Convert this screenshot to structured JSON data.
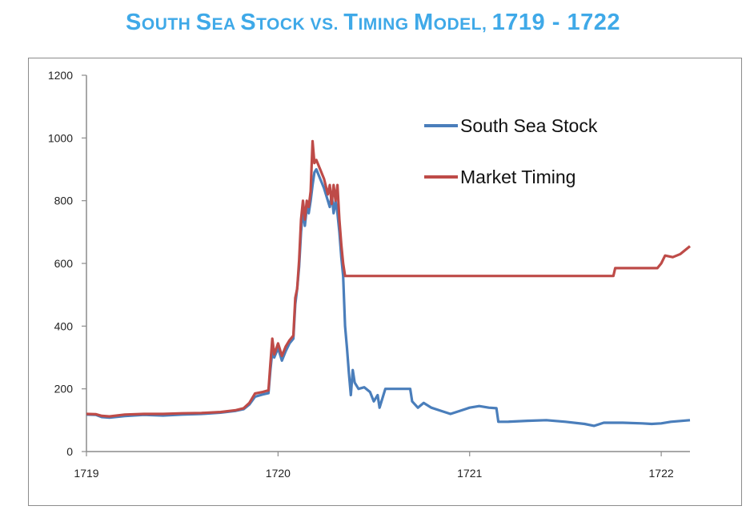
{
  "title_parts": [
    {
      "t": "S",
      "big": true
    },
    {
      "t": "outh ",
      "big": false
    },
    {
      "t": "S",
      "big": true
    },
    {
      "t": "ea ",
      "big": false
    },
    {
      "t": "S",
      "big": true
    },
    {
      "t": "tock vs. ",
      "big": false
    },
    {
      "t": "T",
      "big": true
    },
    {
      "t": "iming ",
      "big": false
    },
    {
      "t": "M",
      "big": true
    },
    {
      "t": "odel, ",
      "big": false
    },
    {
      "t": "1719 - 1722",
      "big": true
    }
  ],
  "colors": {
    "title": "#3FA9E8",
    "south_sea": "#4A7EBB",
    "market_timing": "#BE4B48"
  },
  "chart_data": {
    "type": "line",
    "title": "South Sea Stock vs. Timing Model, 1719 - 1722",
    "xlabel": "",
    "ylabel": "",
    "xlim": [
      1719,
      1722.15
    ],
    "ylim": [
      0,
      1200
    ],
    "yticks": [
      0,
      200,
      400,
      600,
      800,
      1000,
      1200
    ],
    "xticks": [
      "1719",
      "1720",
      "1721",
      "1722"
    ],
    "grid": false,
    "legend_position": "top-right",
    "series": [
      {
        "name": "South Sea Stock",
        "color": "#4A7EBB",
        "points": [
          [
            1719.0,
            118
          ],
          [
            1719.05,
            117
          ],
          [
            1719.08,
            110
          ],
          [
            1719.12,
            108
          ],
          [
            1719.2,
            113
          ],
          [
            1719.3,
            117
          ],
          [
            1719.4,
            115
          ],
          [
            1719.5,
            118
          ],
          [
            1719.6,
            120
          ],
          [
            1719.7,
            124
          ],
          [
            1719.78,
            130
          ],
          [
            1719.82,
            135
          ],
          [
            1719.85,
            150
          ],
          [
            1719.88,
            175
          ],
          [
            1719.92,
            182
          ],
          [
            1719.95,
            186
          ],
          [
            1719.96,
            260
          ],
          [
            1719.97,
            320
          ],
          [
            1719.98,
            300
          ],
          [
            1720.0,
            330
          ],
          [
            1720.02,
            290
          ],
          [
            1720.04,
            320
          ],
          [
            1720.06,
            345
          ],
          [
            1720.08,
            360
          ],
          [
            1720.09,
            470
          ],
          [
            1720.1,
            520
          ],
          [
            1720.11,
            590
          ],
          [
            1720.12,
            700
          ],
          [
            1720.13,
            770
          ],
          [
            1720.14,
            720
          ],
          [
            1720.15,
            780
          ],
          [
            1720.16,
            760
          ],
          [
            1720.17,
            800
          ],
          [
            1720.18,
            850
          ],
          [
            1720.19,
            890
          ],
          [
            1720.2,
            900
          ],
          [
            1720.22,
            870
          ],
          [
            1720.24,
            840
          ],
          [
            1720.26,
            800
          ],
          [
            1720.27,
            780
          ],
          [
            1720.28,
            820
          ],
          [
            1720.29,
            760
          ],
          [
            1720.3,
            800
          ],
          [
            1720.31,
            760
          ],
          [
            1720.32,
            700
          ],
          [
            1720.33,
            620
          ],
          [
            1720.34,
            560
          ],
          [
            1720.35,
            400
          ],
          [
            1720.36,
            330
          ],
          [
            1720.37,
            250
          ],
          [
            1720.38,
            180
          ],
          [
            1720.39,
            260
          ],
          [
            1720.4,
            220
          ],
          [
            1720.42,
            200
          ],
          [
            1720.45,
            205
          ],
          [
            1720.48,
            190
          ],
          [
            1720.5,
            160
          ],
          [
            1720.52,
            180
          ],
          [
            1720.53,
            140
          ],
          [
            1720.55,
            180
          ],
          [
            1720.56,
            200
          ],
          [
            1720.6,
            200
          ],
          [
            1720.65,
            200
          ],
          [
            1720.69,
            200
          ],
          [
            1720.7,
            160
          ],
          [
            1720.73,
            140
          ],
          [
            1720.76,
            155
          ],
          [
            1720.8,
            140
          ],
          [
            1720.85,
            130
          ],
          [
            1720.9,
            120
          ],
          [
            1720.95,
            130
          ],
          [
            1721.0,
            140
          ],
          [
            1721.05,
            145
          ],
          [
            1721.1,
            140
          ],
          [
            1721.14,
            138
          ],
          [
            1721.15,
            95
          ],
          [
            1721.2,
            95
          ],
          [
            1721.3,
            98
          ],
          [
            1721.4,
            100
          ],
          [
            1721.5,
            95
          ],
          [
            1721.6,
            88
          ],
          [
            1721.65,
            82
          ],
          [
            1721.7,
            92
          ],
          [
            1721.8,
            92
          ],
          [
            1721.9,
            90
          ],
          [
            1721.95,
            88
          ],
          [
            1722.0,
            90
          ],
          [
            1722.05,
            95
          ],
          [
            1722.15,
            100
          ]
        ]
      },
      {
        "name": "Market Timing",
        "color": "#BE4B48",
        "points": [
          [
            1719.0,
            120
          ],
          [
            1719.05,
            119
          ],
          [
            1719.08,
            114
          ],
          [
            1719.12,
            112
          ],
          [
            1719.2,
            118
          ],
          [
            1719.3,
            120
          ],
          [
            1719.4,
            120
          ],
          [
            1719.5,
            122
          ],
          [
            1719.6,
            123
          ],
          [
            1719.7,
            126
          ],
          [
            1719.78,
            132
          ],
          [
            1719.82,
            138
          ],
          [
            1719.85,
            155
          ],
          [
            1719.88,
            185
          ],
          [
            1719.92,
            190
          ],
          [
            1719.95,
            195
          ],
          [
            1719.96,
            280
          ],
          [
            1719.97,
            360
          ],
          [
            1719.98,
            310
          ],
          [
            1720.0,
            345
          ],
          [
            1720.02,
            305
          ],
          [
            1720.04,
            335
          ],
          [
            1720.06,
            355
          ],
          [
            1720.08,
            370
          ],
          [
            1720.09,
            490
          ],
          [
            1720.1,
            520
          ],
          [
            1720.11,
            610
          ],
          [
            1720.12,
            740
          ],
          [
            1720.13,
            800
          ],
          [
            1720.14,
            740
          ],
          [
            1720.15,
            800
          ],
          [
            1720.16,
            780
          ],
          [
            1720.17,
            830
          ],
          [
            1720.18,
            990
          ],
          [
            1720.19,
            920
          ],
          [
            1720.2,
            930
          ],
          [
            1720.22,
            900
          ],
          [
            1720.24,
            870
          ],
          [
            1720.26,
            820
          ],
          [
            1720.27,
            850
          ],
          [
            1720.28,
            790
          ],
          [
            1720.29,
            850
          ],
          [
            1720.3,
            800
          ],
          [
            1720.31,
            850
          ],
          [
            1720.32,
            740
          ],
          [
            1720.33,
            660
          ],
          [
            1720.34,
            600
          ],
          [
            1720.35,
            560
          ],
          [
            1721.75,
            560
          ],
          [
            1721.76,
            585
          ],
          [
            1721.98,
            585
          ],
          [
            1722.0,
            600
          ],
          [
            1722.02,
            625
          ],
          [
            1722.06,
            620
          ],
          [
            1722.1,
            630
          ],
          [
            1722.15,
            655
          ]
        ]
      }
    ]
  }
}
